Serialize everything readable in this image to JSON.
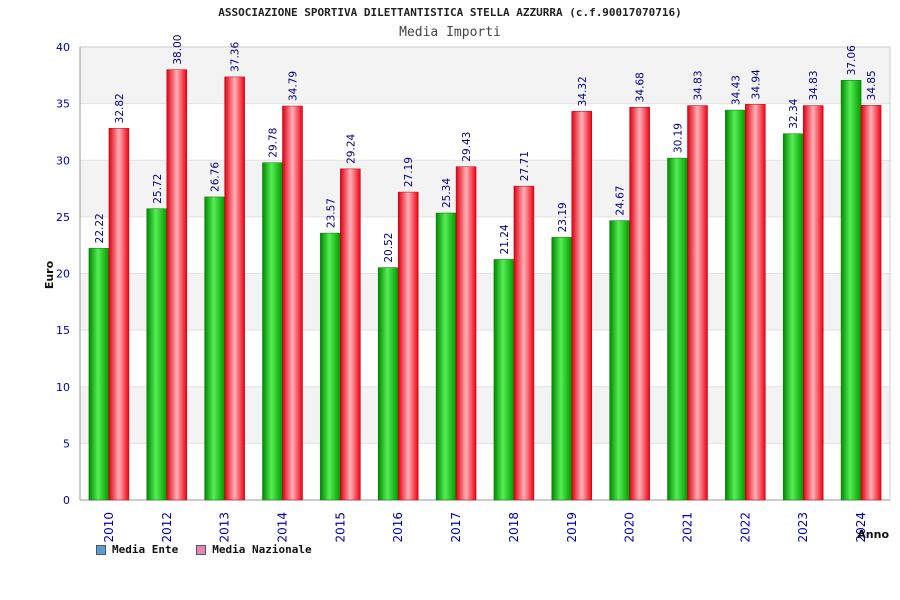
{
  "chart_data": {
    "type": "bar",
    "title": "ASSOCIAZIONE SPORTIVA DILETTANTISTICA STELLA AZZURRA (c.f.90017070716)",
    "subtitle": "Media Importi",
    "xlabel": "Anno",
    "ylabel": "Euro",
    "ylim": [
      0,
      40
    ],
    "yticks": [
      0,
      5,
      10,
      15,
      20,
      25,
      30,
      35,
      40
    ],
    "categories": [
      "2010",
      "2012",
      "2013",
      "2014",
      "2015",
      "2016",
      "2017",
      "2018",
      "2019",
      "2020",
      "2021",
      "2022",
      "2023",
      "2024"
    ],
    "series": [
      {
        "name": "Media Ente",
        "color": "#00aa00",
        "values": [
          22.22,
          25.72,
          26.76,
          29.78,
          23.57,
          20.52,
          25.34,
          21.24,
          23.19,
          24.67,
          30.19,
          34.43,
          32.34,
          37.06
        ]
      },
      {
        "name": "Media Nazionale",
        "color": "#ee0011",
        "values": [
          32.82,
          38.0,
          37.36,
          34.79,
          29.24,
          27.19,
          29.43,
          27.71,
          34.32,
          34.68,
          34.83,
          34.94,
          34.83,
          34.85
        ]
      }
    ],
    "value_labels": [
      [
        "22.22",
        "25.72",
        "26.76",
        "29.78",
        "23.57",
        "20.52",
        "25.34",
        "21.24",
        "23.19",
        "24.67",
        "30.19",
        "34.43",
        "32.34",
        "37.06"
      ],
      [
        "32.82",
        "38.00",
        "37.36",
        "34.79",
        "29.24",
        "27.19",
        "29.43",
        "27.71",
        "34.32",
        "34.68",
        "34.83",
        "34.94",
        "34.83",
        "34.85"
      ]
    ],
    "legend": [
      {
        "label": "Media Ente",
        "swatch_color": "#5b9bd5"
      },
      {
        "label": "Media Nazionale",
        "swatch_color": "#e088b8"
      }
    ],
    "grid": true,
    "legend_position": "bottom-left"
  }
}
